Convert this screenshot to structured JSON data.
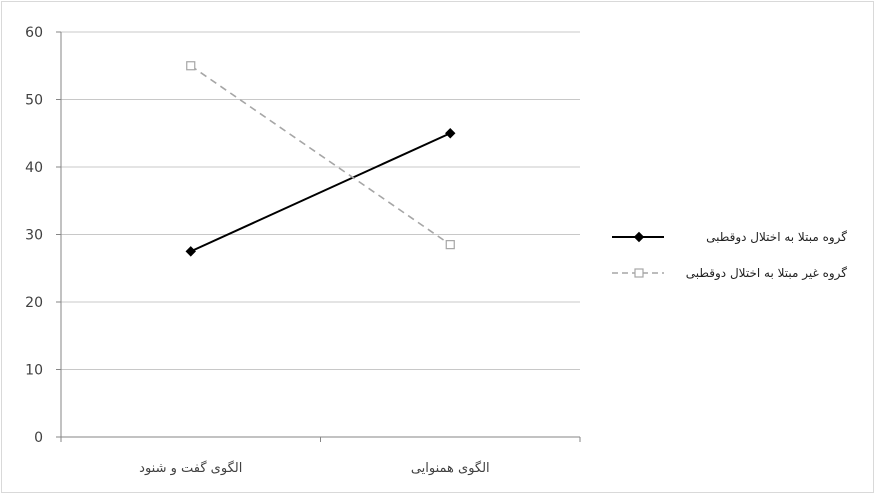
{
  "chart_data": {
    "type": "line",
    "categories": [
      "الگوی گفت و شنود",
      "الگوی همنوایی"
    ],
    "series": [
      {
        "name": "گروه مبتلا به اختلال دوقطبی",
        "values": [
          27.5,
          45
        ],
        "color": "#000000",
        "dashed": false,
        "marker": "diamond"
      },
      {
        "name": "گروه غیر مبتلا به اختلال دوقطبی",
        "values": [
          55,
          28.5
        ],
        "color": "#a6a6a6",
        "dashed": true,
        "marker": "square"
      }
    ],
    "ylim": [
      0,
      60
    ],
    "yticks": [
      0,
      10,
      20,
      30,
      40,
      50,
      60
    ],
    "grid": true,
    "legend_position": "right"
  }
}
